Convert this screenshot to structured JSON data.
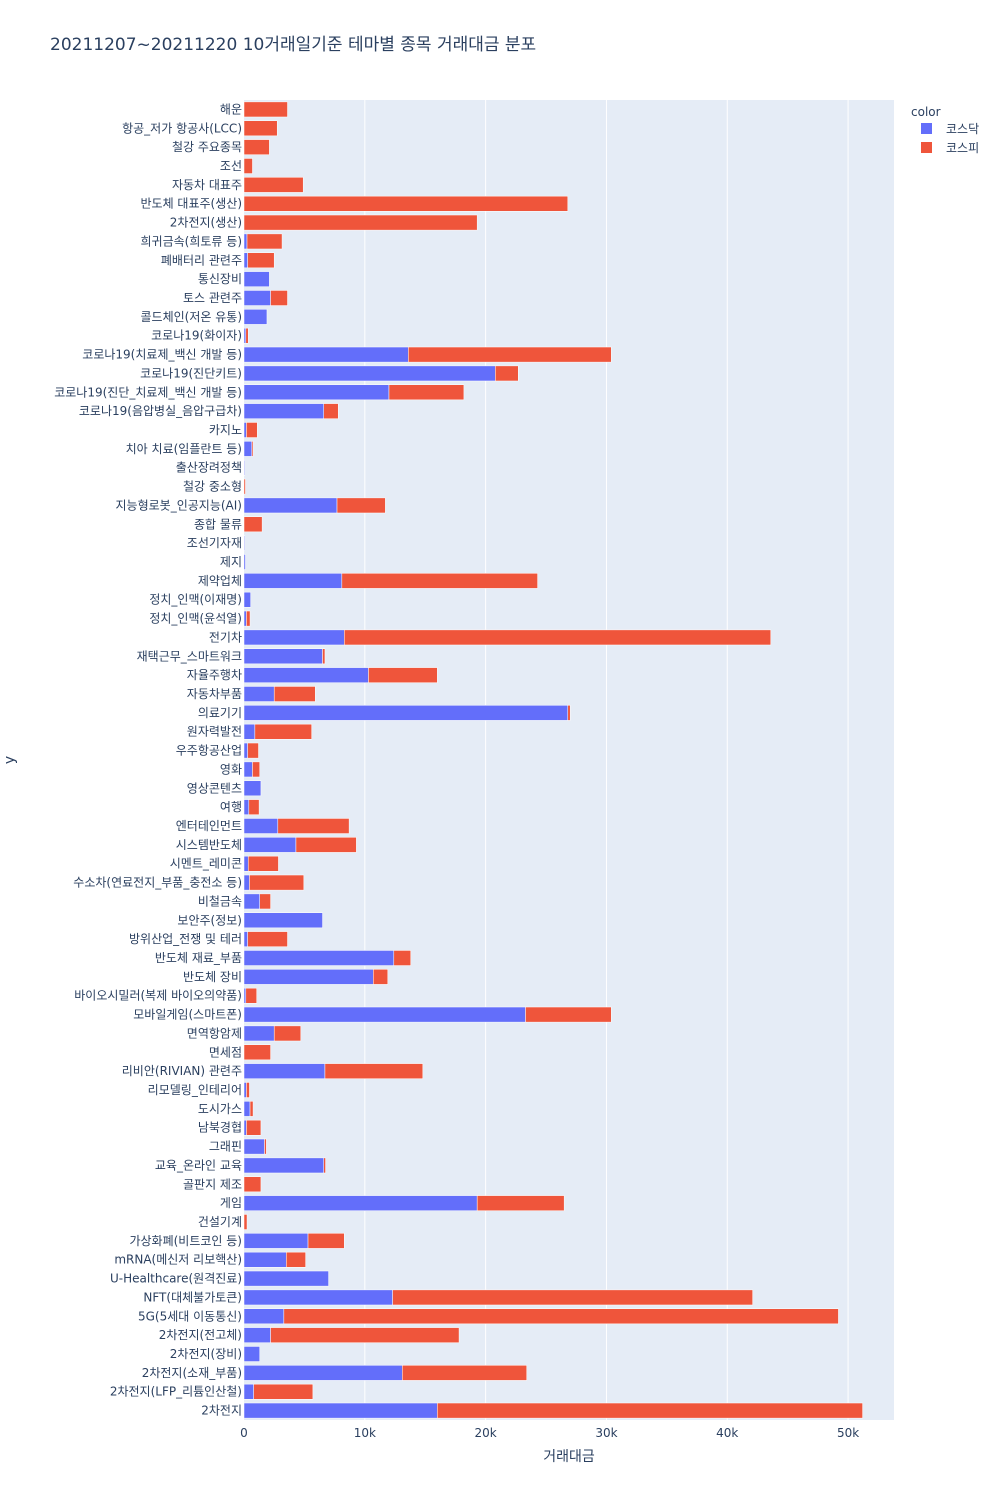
{
  "chart_data": {
    "type": "bar",
    "orientation": "horizontal",
    "barmode": "stack",
    "title": "20211207~20211220 10거래일기준 테마별 종목 거래대금 분포",
    "xlabel": "거래대금",
    "ylabel": "y",
    "xlim": [
      0,
      53800
    ],
    "x_ticks": [
      0,
      10000,
      20000,
      30000,
      40000,
      50000
    ],
    "x_tick_labels": [
      "0",
      "10k",
      "20k",
      "30k",
      "40k",
      "50k"
    ],
    "grid": true,
    "legend": {
      "title": "color",
      "placement": "top-right",
      "items": [
        {
          "name": "코스닥",
          "color": "#636efa"
        },
        {
          "name": "코스피",
          "color": "#ef553b"
        }
      ]
    },
    "categories": [
      "해운",
      "항공_저가 항공사(LCC)",
      "철강 주요종목",
      "조선",
      "자동차 대표주",
      "반도체 대표주(생산)",
      "2차전지(생산)",
      "희귀금속(희토류 등)",
      "폐배터리 관련주",
      "통신장비",
      "토스 관련주",
      "콜드체인(저온 유통)",
      "코로나19(화이자)",
      "코로나19(치료제_백신 개발 등)",
      "코로나19(진단키트)",
      "코로나19(진단_치료제_백신 개발 등)",
      "코로나19(음압병실_음압구급차)",
      "카지노",
      "치아 치료(임플란트 등)",
      "출산장려정책",
      "철강 중소형",
      "지능형로봇_인공지능(AI)",
      "종합 물류",
      "조선기자재",
      "제지",
      "제약업체",
      "정치_인맥(이재명)",
      "정치_인맥(윤석열)",
      "전기차",
      "재택근무_스마트워크",
      "자율주행차",
      "자동차부품",
      "의료기기",
      "원자력발전",
      "우주항공산업",
      "영화",
      "영상콘텐츠",
      "여행",
      "엔터테인먼트",
      "시스템반도체",
      "시멘트_레미콘",
      "수소차(연료전지_부품_충전소 등)",
      "비철금속",
      "보안주(정보)",
      "방위산업_전쟁 및 테러",
      "반도체 재료_부품",
      "반도체 장비",
      "바이오시밀러(복제 바이오의약품)",
      "모바일게임(스마트폰)",
      "면역항암제",
      "면세점",
      "리비안(RIVIAN) 관련주",
      "리모델링_인테리어",
      "도시가스",
      "남북경협",
      "그래핀",
      "교육_온라인 교육",
      "골판지 제조",
      "게임",
      "건설기계",
      "가상화폐(비트코인 등)",
      "mRNA(메신저 리보핵산)",
      "U-Healthcare(원격진료)",
      "NFT(대체불가토큰)",
      "5G(5세대 이동통신)",
      "2차전지(전고체)",
      "2차전지(장비)",
      "2차전지(소재_부품)",
      "2차전지(LFP_리튬인산철)",
      "2차전지"
    ],
    "series": [
      {
        "name": "코스닥",
        "color": "#636efa",
        "values": [
          0,
          0,
          0,
          0,
          0,
          0,
          0,
          250,
          300,
          2100,
          2200,
          1900,
          150,
          13600,
          20800,
          12000,
          6600,
          200,
          650,
          60,
          0,
          7700,
          0,
          60,
          120,
          8100,
          550,
          200,
          8300,
          6500,
          10300,
          2500,
          26800,
          900,
          300,
          700,
          1400,
          400,
          2800,
          4300,
          350,
          450,
          1300,
          6500,
          300,
          12400,
          10700,
          150,
          23300,
          2500,
          0,
          6700,
          200,
          500,
          200,
          1700,
          6600,
          0,
          19300,
          0,
          5300,
          3500,
          7000,
          12300,
          3300,
          2200,
          1300,
          13100,
          800,
          16000
        ]
      },
      {
        "name": "코스피",
        "color": "#ef553b",
        "values": [
          3600,
          2750,
          2100,
          700,
          4900,
          26800,
          19300,
          2900,
          2200,
          0,
          1400,
          0,
          200,
          16800,
          1900,
          6200,
          1200,
          900,
          100,
          0,
          120,
          4000,
          1500,
          0,
          0,
          16200,
          0,
          300,
          35300,
          200,
          5700,
          3400,
          200,
          4700,
          900,
          600,
          0,
          850,
          5900,
          5000,
          2500,
          4500,
          900,
          0,
          3300,
          1400,
          1200,
          900,
          7100,
          2200,
          2200,
          8100,
          250,
          250,
          1200,
          150,
          150,
          1400,
          7200,
          250,
          3000,
          1600,
          0,
          29800,
          45900,
          15600,
          0,
          10300,
          4900,
          35200
        ]
      }
    ]
  }
}
